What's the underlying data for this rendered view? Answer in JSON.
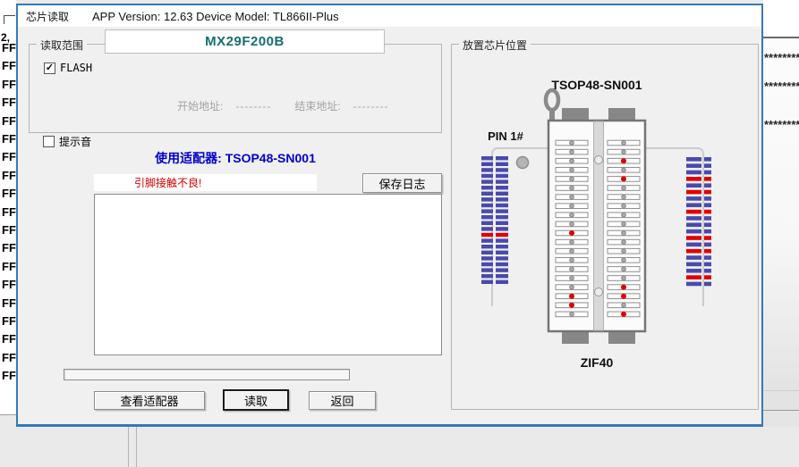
{
  "window": {
    "title": "芯片读取",
    "version_line": "APP Version: 12.63 Device Model: TL866II-Plus"
  },
  "chip": {
    "name": "MX29F200B"
  },
  "read_range": {
    "group_label": "读取范围",
    "flash_label": "FLASH",
    "flash_checked": true,
    "check_glyph": "✓",
    "start_label": "开始地址:",
    "start_value": "--------",
    "end_label": "结束地址:",
    "end_value": "--------"
  },
  "beep": {
    "label": "提示音",
    "checked": false
  },
  "adapter_line": "使用适配器: TSOP48-SN001",
  "status": {
    "message": "引脚接触不良!"
  },
  "buttons": {
    "save_log": "保存日志",
    "view_adapter": "查看适配器",
    "read": "读取",
    "back": "返回"
  },
  "log": {
    "content": ""
  },
  "placement": {
    "group_label": "放置芯片位置",
    "adapter_name": "TSOP48-SN001",
    "pin1_label": "PIN 1#",
    "socket_label": "ZIF40",
    "left_pins": [
      "ok",
      "ok",
      "ok",
      "ok",
      "ok",
      "ok",
      "ok",
      "ok",
      "ok",
      "ok",
      "bad",
      "ok",
      "ok",
      "ok",
      "ok",
      "ok",
      "ok",
      "bad",
      "bad",
      "ok"
    ],
    "right_pins": [
      "ok",
      "ok",
      "bad",
      "ok",
      "bad",
      "ok",
      "ok",
      "ok",
      "ok",
      "ok",
      "ok",
      "ok",
      "ok",
      "ok",
      "ok",
      "ok",
      "bad",
      "bad",
      "ok",
      "bad"
    ],
    "left_strip": {
      "count": 22,
      "bad_rows": [
        14
      ]
    },
    "right_strip": {
      "count": 20,
      "bad_rows": [
        4,
        6,
        9,
        13,
        15,
        19
      ]
    }
  },
  "background": {
    "hex_rows": [
      "FF",
      "FF",
      "FF",
      "FF",
      "FF",
      "FF",
      "FF",
      "FF",
      "FF",
      "FF",
      "FF",
      "FF",
      "FF",
      "FF",
      "FF",
      "FF",
      "FF",
      "FF",
      "FF"
    ],
    "partial_number": "2,",
    "ascii_rows": [
      "*********",
      "*********",
      "*********"
    ]
  },
  "colors": {
    "dialog_border": "#3579b8",
    "chip_name": "#156e6e",
    "adapter_text": "#0000cc",
    "status_red": "#d40000",
    "strip_blue": "#4a4aad",
    "strip_red": "#e00000",
    "pin_dot_gray": "#a8a8a8",
    "pin_dot_red": "#e00000",
    "socket_gray": "#878787"
  }
}
